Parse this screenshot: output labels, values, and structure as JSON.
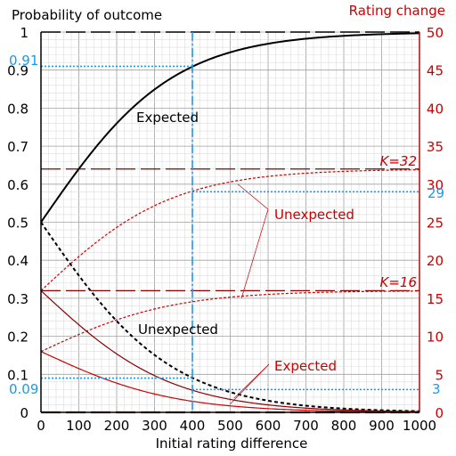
{
  "chart_data": {
    "type": "line",
    "xlabel": "Initial rating difference",
    "ylabel_left": "Probability of outcome",
    "ylabel_right": "Rating change",
    "xlim": [
      0,
      1000
    ],
    "ylim_left": [
      0,
      1
    ],
    "ylim_right": [
      0,
      50
    ],
    "x_ticks": [
      "0",
      "100",
      "200",
      "300",
      "400",
      "500",
      "600",
      "700",
      "800",
      "900",
      "1000"
    ],
    "y_left_ticks": [
      "0",
      "0.1",
      "0.2",
      "0.3",
      "0.4",
      "0.5",
      "0.6",
      "0.7",
      "0.8",
      "0.9",
      "1"
    ],
    "y_right_ticks": [
      "0",
      "5",
      "10",
      "15",
      "20",
      "25",
      "30",
      "35",
      "40",
      "45",
      "50"
    ],
    "grid": true,
    "model": {
      "rating_scale": 400,
      "k_values": [
        32,
        16
      ]
    },
    "annotations": {
      "expected_black": "Expected",
      "unexpected_black": "Unexpected",
      "unexpected_red": "Unexpected",
      "expected_red": "Expected",
      "k32": "K=32",
      "k16": "K=16",
      "p_high_label": "0.91",
      "p_low_label": "0.09",
      "change_high_label": "29",
      "change_low_label": "3",
      "p_high_value": 0.91,
      "p_low_value": 0.09,
      "change_high_value": 29,
      "change_low_value": 3,
      "highlight_x": 400
    },
    "colors": {
      "probability": "#000000",
      "rating": "#cc0000",
      "rating_dark": "#880000",
      "highlight": "#1a9be8",
      "grid_minor": "#dcdcdc",
      "grid_major": "#a0a0a0"
    }
  }
}
